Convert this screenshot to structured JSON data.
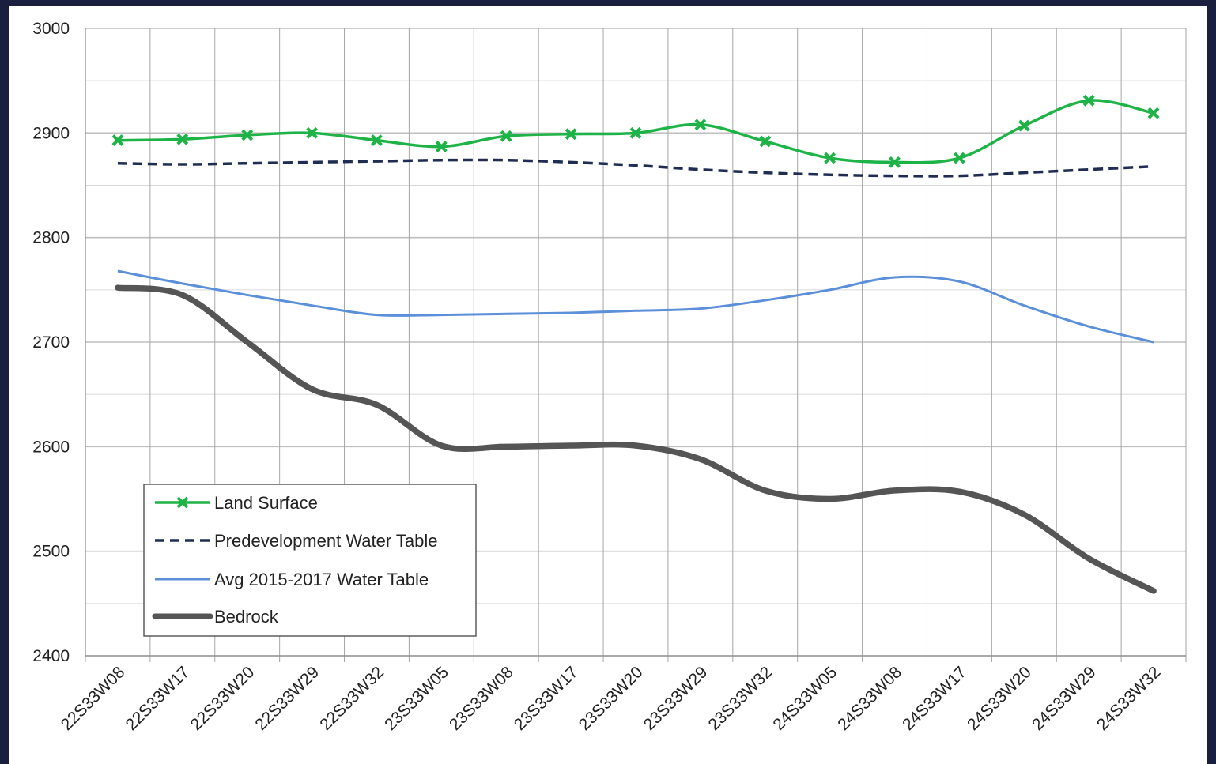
{
  "chart_data": {
    "type": "line",
    "title": "",
    "xlabel": "",
    "ylabel": "",
    "categories": [
      "22S33W08",
      "22S33W17",
      "22S33W20",
      "22S33W29",
      "22S33W32",
      "23S33W05",
      "23S33W08",
      "23S33W17",
      "23S33W20",
      "23S33W29",
      "23S33W32",
      "24S33W05",
      "24S33W08",
      "24S33W17",
      "24S33W20",
      "24S33W29",
      "24S33W32"
    ],
    "ylim": [
      2400,
      3000
    ],
    "yticks": [
      2400,
      2500,
      2600,
      2700,
      2800,
      2900,
      3000
    ],
    "grid": true,
    "legend_position": "bottom-left",
    "series": [
      {
        "name": "Land Surface",
        "color": "#1eb347",
        "style": "solid-markers",
        "marker": "x",
        "values": [
          2893,
          2894,
          2898,
          2900,
          2893,
          2887,
          2897,
          2899,
          2900,
          2908,
          2892,
          2876,
          2872,
          2876,
          2907,
          2931,
          2919
        ]
      },
      {
        "name": "Predevelopment Water Table",
        "color": "#1f2d52",
        "style": "dashed",
        "values": [
          2871,
          2870,
          2871,
          2872,
          2873,
          2874,
          2874,
          2872,
          2869,
          2865,
          2862,
          2860,
          2859,
          2859,
          2862,
          2865,
          2868
        ]
      },
      {
        "name": "Avg 2015-2017 Water Table",
        "color": "#5b8fd9",
        "style": "solid",
        "values": [
          2768,
          2756,
          2745,
          2735,
          2726,
          2726,
          2727,
          2728,
          2730,
          2732,
          2740,
          2750,
          2762,
          2758,
          2735,
          2715,
          2700
        ]
      },
      {
        "name": "Bedrock",
        "color": "#555555",
        "style": "thick",
        "values": [
          2752,
          2745,
          2700,
          2655,
          2640,
          2601,
          2600,
          2601,
          2601,
          2588,
          2558,
          2550,
          2558,
          2557,
          2535,
          2493,
          2462
        ]
      }
    ]
  }
}
